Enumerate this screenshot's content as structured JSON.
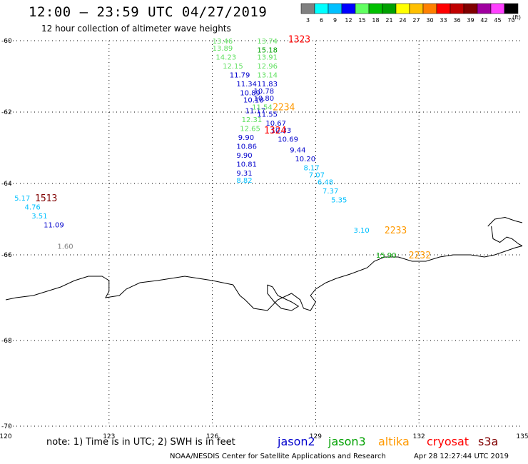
{
  "header": {
    "title": "12:00 – 23:59 UTC 04/27/2019",
    "subtitle": "12 hour collection of altimeter wave heights"
  },
  "legend": {
    "unit": "(ft)",
    "bins": [
      {
        "label": "3",
        "color": "#808080"
      },
      {
        "label": "6",
        "color": "#00ffff"
      },
      {
        "label": "9",
        "color": "#00c0ff"
      },
      {
        "label": "12",
        "color": "#0000ff"
      },
      {
        "label": "15",
        "color": "#60ff60"
      },
      {
        "label": "18",
        "color": "#00c000"
      },
      {
        "label": "21",
        "color": "#00a000"
      },
      {
        "label": "24",
        "color": "#ffff00"
      },
      {
        "label": "27",
        "color": "#ffc000"
      },
      {
        "label": "30",
        "color": "#ff8000"
      },
      {
        "label": "33",
        "color": "#ff0000"
      },
      {
        "label": "36",
        "color": "#c00000"
      },
      {
        "label": "39",
        "color": "#800000"
      },
      {
        "label": "42",
        "color": "#a000a0"
      },
      {
        "label": "45",
        "color": "#ff40ff"
      },
      {
        "label": "70",
        "color": "#000000"
      }
    ]
  },
  "map": {
    "lon_range": [
      120,
      135
    ],
    "lat_range": [
      -70,
      -60
    ],
    "lon_ticks": [
      "120",
      "123",
      "126",
      "129",
      "132",
      "135"
    ],
    "lat_ticks": [
      "-60",
      "-62",
      "-64",
      "-66",
      "-68",
      "-70"
    ],
    "lon_tick_values": [
      120,
      123,
      126,
      129,
      132,
      135
    ],
    "lat_tick_values": [
      -60,
      -62,
      -64,
      -66,
      -68,
      -70
    ],
    "grid": "dotted"
  },
  "observations": [
    {
      "lon": 126.0,
      "lat": -60.0,
      "swh": "13.46",
      "color": "#60e060"
    },
    {
      "lon": 126.0,
      "lat": -60.2,
      "swh": "13.89",
      "color": "#60e060"
    },
    {
      "lon": 126.1,
      "lat": -60.45,
      "swh": "14.23",
      "color": "#60e060"
    },
    {
      "lon": 126.3,
      "lat": -60.7,
      "swh": "12.15",
      "color": "#60e060"
    },
    {
      "lon": 126.5,
      "lat": -60.95,
      "swh": "11.79",
      "color": "#0000cc"
    },
    {
      "lon": 126.7,
      "lat": -61.2,
      "swh": "11.34",
      "color": "#0000cc"
    },
    {
      "lon": 126.8,
      "lat": -61.45,
      "swh": "10.89",
      "color": "#0000cc"
    },
    {
      "lon": 126.9,
      "lat": -61.65,
      "swh": "10.18",
      "color": "#0000cc"
    },
    {
      "lon": 126.95,
      "lat": -61.95,
      "swh": "11.17",
      "color": "#0000cc"
    },
    {
      "lon": 126.85,
      "lat": -62.2,
      "swh": "12.31",
      "color": "#60e060"
    },
    {
      "lon": 126.8,
      "lat": -62.45,
      "swh": "12.65",
      "color": "#60e060"
    },
    {
      "lon": 126.75,
      "lat": -62.7,
      "swh": "9.90",
      "color": "#0000cc"
    },
    {
      "lon": 126.7,
      "lat": -62.95,
      "swh": "10.86",
      "color": "#0000cc"
    },
    {
      "lon": 126.7,
      "lat": -63.2,
      "swh": "9.90",
      "color": "#0000cc"
    },
    {
      "lon": 126.7,
      "lat": -63.45,
      "swh": "10.81",
      "color": "#0000cc"
    },
    {
      "lon": 126.7,
      "lat": -63.7,
      "swh": "9.31",
      "color": "#0000cc"
    },
    {
      "lon": 126.7,
      "lat": -63.9,
      "swh": "8.82",
      "color": "#00c0ff"
    },
    {
      "lon": 127.3,
      "lat": -60.0,
      "swh": "13.74",
      "color": "#60e060"
    },
    {
      "lon": 127.3,
      "lat": -60.25,
      "swh": "15.18",
      "color": "#00a000"
    },
    {
      "lon": 127.3,
      "lat": -60.45,
      "swh": "13.91",
      "color": "#60e060"
    },
    {
      "lon": 127.3,
      "lat": -60.7,
      "swh": "12.96",
      "color": "#60e060"
    },
    {
      "lon": 127.3,
      "lat": -60.95,
      "swh": "13.14",
      "color": "#60e060"
    },
    {
      "lon": 127.3,
      "lat": -61.2,
      "swh": "11.83",
      "color": "#0000cc"
    },
    {
      "lon": 127.2,
      "lat": -61.4,
      "swh": "10.78",
      "color": "#0000cc"
    },
    {
      "lon": 127.2,
      "lat": -61.6,
      "swh": "10.80",
      "color": "#0000cc"
    },
    {
      "lon": 127.15,
      "lat": -61.85,
      "swh": "11.54",
      "color": "#60e060"
    },
    {
      "lon": 127.3,
      "lat": -62.05,
      "swh": "11.55",
      "color": "#0000cc"
    },
    {
      "lon": 127.55,
      "lat": -62.3,
      "swh": "10.67",
      "color": "#0000cc"
    },
    {
      "lon": 127.7,
      "lat": -62.5,
      "swh": "10.33",
      "color": "#0000cc"
    },
    {
      "lon": 127.9,
      "lat": -62.75,
      "swh": "10.69",
      "color": "#0000cc"
    },
    {
      "lon": 128.25,
      "lat": -63.05,
      "swh": "9.44",
      "color": "#0000cc"
    },
    {
      "lon": 128.4,
      "lat": -63.3,
      "swh": "10.20",
      "color": "#0000cc"
    },
    {
      "lon": 128.65,
      "lat": -63.55,
      "swh": "8.17",
      "color": "#00c0ff"
    },
    {
      "lon": 128.8,
      "lat": -63.75,
      "swh": "7.07",
      "color": "#00c0ff"
    },
    {
      "lon": 129.05,
      "lat": -63.95,
      "swh": "6.48",
      "color": "#00c0ff"
    },
    {
      "lon": 129.2,
      "lat": -64.2,
      "swh": "7.37",
      "color": "#00c0ff"
    },
    {
      "lon": 129.45,
      "lat": -64.45,
      "swh": "5.35",
      "color": "#00c0ff"
    },
    {
      "lon": 120.25,
      "lat": -64.4,
      "swh": "5.17",
      "color": "#00c0ff"
    },
    {
      "lon": 120.55,
      "lat": -64.65,
      "swh": "4.76",
      "color": "#00c0ff"
    },
    {
      "lon": 120.75,
      "lat": -64.9,
      "swh": "3.51",
      "color": "#00c0ff"
    },
    {
      "lon": 121.1,
      "lat": -65.15,
      "swh": "11.09",
      "color": "#0000cc"
    },
    {
      "lon": 121.5,
      "lat": -65.75,
      "swh": "1.60",
      "color": "#808080"
    },
    {
      "lon": 130.1,
      "lat": -65.3,
      "swh": "3.10",
      "color": "#00c0ff"
    },
    {
      "lon": 130.75,
      "lat": -66.0,
      "swh": "15.90",
      "color": "#00a000"
    }
  ],
  "time_labels": [
    {
      "lon": 128.2,
      "lat": -59.95,
      "text": "1323",
      "color": "#ff0000"
    },
    {
      "lon": 127.75,
      "lat": -61.85,
      "text": "2234",
      "color": "#ff9900"
    },
    {
      "lon": 127.5,
      "lat": -62.5,
      "text": "1324",
      "color": "#ff0000"
    },
    {
      "lon": 120.85,
      "lat": -64.4,
      "text": "1513",
      "color": "#800000"
    },
    {
      "lon": 131.0,
      "lat": -65.3,
      "text": "2233",
      "color": "#ff9900"
    },
    {
      "lon": 131.7,
      "lat": -66.0,
      "text": "2232",
      "color": "#ff9900"
    }
  ],
  "coastline": [
    [
      [
        120.0,
        -67.05
      ],
      [
        120.3,
        -67.0
      ],
      [
        120.8,
        -66.95
      ],
      [
        121.2,
        -66.85
      ],
      [
        121.6,
        -66.75
      ],
      [
        122.0,
        -66.6
      ],
      [
        122.4,
        -66.5
      ],
      [
        122.8,
        -66.5
      ],
      [
        123.0,
        -66.6
      ],
      [
        123.0,
        -66.85
      ],
      [
        122.9,
        -67.0
      ],
      [
        123.3,
        -66.95
      ],
      [
        123.5,
        -66.8
      ],
      [
        123.9,
        -66.65
      ],
      [
        124.4,
        -66.6
      ],
      [
        124.8,
        -66.55
      ],
      [
        125.2,
        -66.5
      ],
      [
        125.6,
        -66.55
      ],
      [
        126.0,
        -66.6
      ],
      [
        126.3,
        -66.65
      ],
      [
        126.6,
        -66.7
      ],
      [
        126.8,
        -66.95
      ],
      [
        126.95,
        -67.05
      ],
      [
        127.2,
        -67.25
      ],
      [
        127.6,
        -67.3
      ],
      [
        127.9,
        -67.05
      ],
      [
        128.3,
        -66.9
      ],
      [
        128.55,
        -67.05
      ],
      [
        128.65,
        -67.25
      ],
      [
        128.85,
        -67.3
      ],
      [
        129.0,
        -67.1
      ],
      [
        128.85,
        -66.95
      ],
      [
        129.0,
        -66.8
      ],
      [
        129.3,
        -66.65
      ],
      [
        129.6,
        -66.55
      ],
      [
        130.0,
        -66.45
      ],
      [
        130.5,
        -66.3
      ],
      [
        130.7,
        -66.15
      ],
      [
        131.0,
        -66.05
      ],
      [
        131.4,
        -66.05
      ],
      [
        131.8,
        -66.15
      ],
      [
        132.2,
        -66.15
      ],
      [
        132.6,
        -66.05
      ],
      [
        133.0,
        -66.0
      ],
      [
        133.5,
        -66.0
      ],
      [
        133.9,
        -66.05
      ],
      [
        134.2,
        -66.0
      ],
      [
        134.5,
        -65.9
      ],
      [
        134.8,
        -65.8
      ],
      [
        135.0,
        -65.75
      ]
    ],
    [
      [
        127.6,
        -66.7
      ],
      [
        127.75,
        -66.75
      ],
      [
        127.9,
        -66.95
      ],
      [
        128.3,
        -67.1
      ],
      [
        128.5,
        -67.2
      ],
      [
        128.3,
        -67.3
      ],
      [
        128.0,
        -67.25
      ],
      [
        127.8,
        -67.1
      ],
      [
        127.6,
        -66.9
      ],
      [
        127.6,
        -66.7
      ]
    ],
    [
      [
        134.0,
        -65.2
      ],
      [
        134.2,
        -65.0
      ],
      [
        134.5,
        -64.95
      ],
      [
        134.8,
        -65.05
      ],
      [
        135.0,
        -65.1
      ]
    ],
    [
      [
        134.1,
        -65.2
      ],
      [
        134.15,
        -65.55
      ],
      [
        134.35,
        -65.65
      ],
      [
        134.55,
        -65.5
      ],
      [
        134.7,
        -65.55
      ],
      [
        134.9,
        -65.7
      ],
      [
        135.0,
        -65.75
      ]
    ]
  ],
  "footer": {
    "note": "note: 1) Time is in UTC; 2) SWH is in feet",
    "credit": "NOAA/NESDIS Center for Satellite Applications and Research",
    "generated": "Apr 28 12:27:44 UTC 2019"
  },
  "satellites": [
    {
      "name": "jason2",
      "color": "#0000cc"
    },
    {
      "name": "jason3",
      "color": "#00a000"
    },
    {
      "name": "altika",
      "color": "#ff9900"
    },
    {
      "name": "cryosat",
      "color": "#ff0000"
    },
    {
      "name": "s3a",
      "color": "#800000"
    }
  ]
}
